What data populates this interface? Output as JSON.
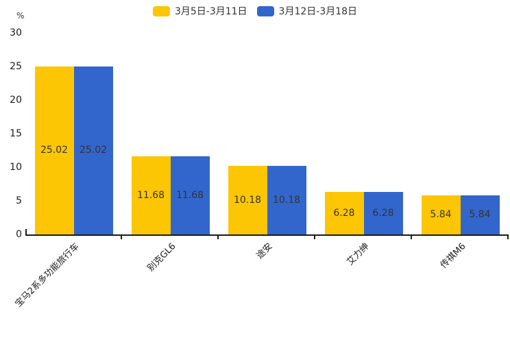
{
  "chart_data": {
    "type": "bar",
    "title": "",
    "categories": [
      "宝马2系多功能旅行车",
      "别克GL6",
      "途安",
      "艾力绅",
      "传祺M6"
    ],
    "series": [
      {
        "name": "3月5日-3月11日",
        "color": "#FDC604",
        "values": [
          25.02,
          11.68,
          10.18,
          6.28,
          5.84
        ]
      },
      {
        "name": "3月12日-3月18日",
        "color": "#3366CC",
        "values": [
          25.02,
          11.68,
          10.18,
          6.28,
          5.84
        ]
      }
    ],
    "ylabel": "%",
    "y_ticks": [
      0,
      5,
      10,
      15,
      20,
      25,
      30
    ],
    "ylim": [
      0,
      30
    ],
    "legend_position": "top",
    "grid": false,
    "value_labels": "centered-inside-bars",
    "x_label_rotation": -45
  },
  "colors": {
    "background": "#ffffff",
    "axis": "#1a1a1a",
    "value_label": "#333333",
    "tick_label": "#1a1a1a"
  }
}
